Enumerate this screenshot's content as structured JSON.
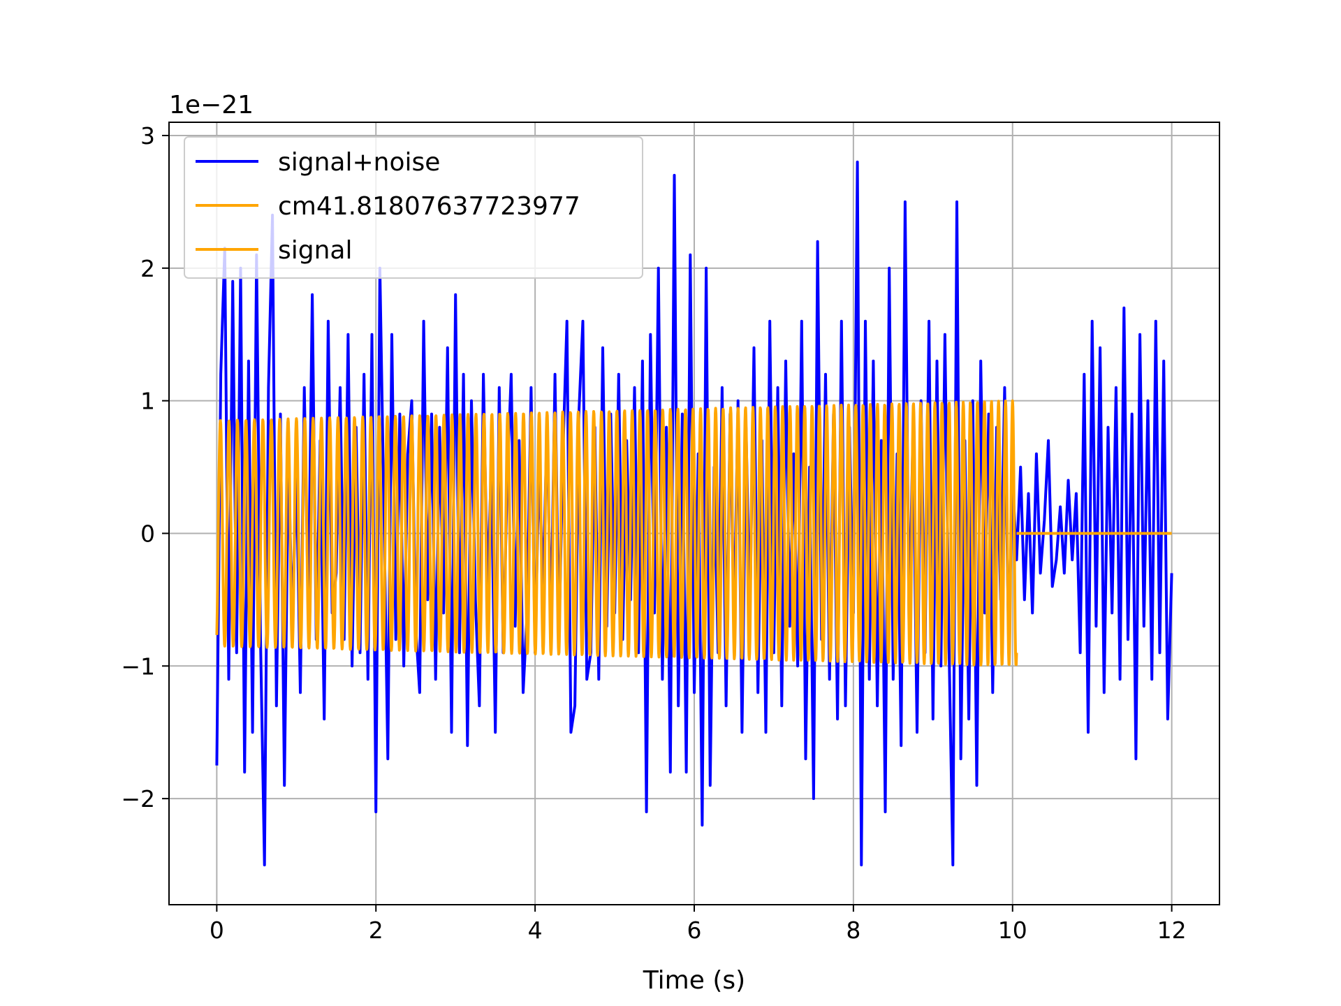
{
  "chart_data": {
    "type": "line",
    "title": "",
    "xlabel": "Time (s)",
    "ylabel": "",
    "y_offset_text": "1e−21",
    "xlim": [
      -0.6,
      12.6
    ],
    "ylim": [
      -2.8,
      3.1
    ],
    "xticks": [
      0,
      2,
      4,
      6,
      8,
      10,
      12
    ],
    "xtick_labels": [
      "0",
      "2",
      "4",
      "6",
      "8",
      "10",
      "12"
    ],
    "yticks": [
      -2,
      -1,
      0,
      1,
      2,
      3
    ],
    "ytick_labels": [
      "−2",
      "−1",
      "0",
      "1",
      "2",
      "3"
    ],
    "grid": true,
    "legend_position": "top-left",
    "series": [
      {
        "name": "signal+noise",
        "color": "#0000ff",
        "description_range": {
          "t_start": 0,
          "t_end": 12
        },
        "x": [
          0.0,
          0.05,
          0.1,
          0.15,
          0.2,
          0.25,
          0.3,
          0.35,
          0.4,
          0.45,
          0.5,
          0.55,
          0.6,
          0.65,
          0.7,
          0.75,
          0.8,
          0.85,
          0.9,
          0.95,
          1.0,
          1.05,
          1.1,
          1.15,
          1.2,
          1.25,
          1.3,
          1.35,
          1.4,
          1.45,
          1.5,
          1.55,
          1.6,
          1.65,
          1.7,
          1.75,
          1.8,
          1.85,
          1.9,
          1.95,
          2.0,
          2.05,
          2.1,
          2.15,
          2.2,
          2.25,
          2.3,
          2.35,
          2.4,
          2.45,
          2.5,
          2.55,
          2.6,
          2.65,
          2.7,
          2.75,
          2.8,
          2.85,
          2.9,
          2.95,
          3.0,
          3.05,
          3.1,
          3.15,
          3.2,
          3.25,
          3.3,
          3.35,
          3.4,
          3.45,
          3.5,
          3.55,
          3.6,
          3.65,
          3.7,
          3.75,
          3.8,
          3.85,
          3.9,
          3.95,
          4.0,
          4.05,
          4.1,
          4.15,
          4.2,
          4.25,
          4.3,
          4.35,
          4.4,
          4.45,
          4.5,
          4.55,
          4.6,
          4.65,
          4.7,
          4.75,
          4.8,
          4.85,
          4.9,
          4.95,
          5.0,
          5.05,
          5.1,
          5.15,
          5.2,
          5.25,
          5.3,
          5.35,
          5.4,
          5.45,
          5.5,
          5.55,
          5.6,
          5.65,
          5.7,
          5.75,
          5.8,
          5.85,
          5.9,
          5.95,
          6.0,
          6.05,
          6.1,
          6.15,
          6.2,
          6.25,
          6.3,
          6.35,
          6.4,
          6.45,
          6.5,
          6.55,
          6.6,
          6.65,
          6.7,
          6.75,
          6.8,
          6.85,
          6.9,
          6.95,
          7.0,
          7.05,
          7.1,
          7.15,
          7.2,
          7.25,
          7.3,
          7.35,
          7.4,
          7.45,
          7.5,
          7.55,
          7.6,
          7.65,
          7.7,
          7.75,
          7.8,
          7.85,
          7.9,
          7.95,
          8.0,
          8.05,
          8.1,
          8.15,
          8.2,
          8.25,
          8.3,
          8.35,
          8.4,
          8.45,
          8.5,
          8.55,
          8.6,
          8.65,
          8.7,
          8.75,
          8.8,
          8.85,
          8.9,
          8.95,
          9.0,
          9.05,
          9.1,
          9.15,
          9.2,
          9.25,
          9.3,
          9.35,
          9.4,
          9.45,
          9.5,
          9.55,
          9.6,
          9.65,
          9.7,
          9.75,
          9.8,
          9.85,
          9.9,
          9.95,
          10.0,
          10.05,
          10.1,
          10.15,
          10.2,
          10.25,
          10.3,
          10.35,
          10.4,
          10.45,
          10.5,
          10.55,
          10.6,
          10.65,
          10.7,
          10.75,
          10.8,
          10.85,
          10.9,
          10.95,
          11.0,
          11.05,
          11.1,
          11.15,
          11.2,
          11.25,
          11.3,
          11.35,
          11.4,
          11.45,
          11.5,
          11.55,
          11.6,
          11.65,
          11.7,
          11.75,
          11.8,
          11.85,
          11.9,
          11.95,
          12.0
        ],
        "values": [
          -1.75,
          1.2,
          2.15,
          -1.1,
          1.9,
          -0.9,
          2.0,
          -1.8,
          1.3,
          -1.5,
          2.1,
          -0.8,
          -2.5,
          1.1,
          2.4,
          -1.3,
          0.9,
          -1.9,
          0.6,
          -0.7,
          0.5,
          -1.2,
          1.1,
          -0.6,
          1.8,
          -0.8,
          0.7,
          -1.4,
          1.6,
          -0.6,
          -0.3,
          1.1,
          -0.8,
          1.5,
          -1.0,
          0.8,
          -0.9,
          1.2,
          -1.1,
          1.5,
          -2.1,
          2.0,
          0.2,
          -1.7,
          1.5,
          -0.8,
          0.9,
          -1.0,
          0.6,
          1.0,
          -0.7,
          -1.2,
          1.6,
          -0.5,
          0.9,
          -1.1,
          0.8,
          -0.6,
          1.4,
          -1.5,
          1.8,
          -0.9,
          1.2,
          -1.6,
          1.0,
          -0.5,
          -1.3,
          1.2,
          -0.4,
          0.5,
          -1.5,
          1.1,
          -0.9,
          0.4,
          1.2,
          -0.7,
          0.7,
          -1.2,
          -0.6,
          1.1,
          -0.9,
          0.5,
          -0.4,
          0.8,
          -0.7,
          1.2,
          -0.8,
          0.6,
          1.6,
          -1.5,
          -1.3,
          0.9,
          1.6,
          -1.1,
          -0.9,
          0.8,
          -1.1,
          1.4,
          -0.7,
          0.9,
          -0.6,
          1.2,
          -0.8,
          0.7,
          -0.5,
          1.1,
          -0.9,
          1.3,
          -2.1,
          1.5,
          -0.6,
          2.0,
          -1.1,
          0.8,
          -1.8,
          2.7,
          -1.3,
          0.9,
          -1.8,
          2.1,
          -1.2,
          0.6,
          -2.2,
          2.0,
          -1.9,
          0.5,
          -0.9,
          1.1,
          -1.3,
          0.9,
          -0.7,
          1.0,
          -1.5,
          0.8,
          -0.6,
          1.4,
          -1.2,
          0.7,
          -1.5,
          1.6,
          -0.9,
          1.1,
          -1.3,
          1.3,
          -0.7,
          0.6,
          -1.0,
          1.6,
          -1.7,
          0.5,
          -2.0,
          2.2,
          -0.8,
          1.2,
          -1.1,
          0.9,
          -1.4,
          1.6,
          -1.3,
          0.8,
          -0.6,
          2.8,
          -2.5,
          1.6,
          -1.1,
          1.3,
          -1.3,
          0.7,
          -2.1,
          2.0,
          -1.1,
          0.6,
          -1.6,
          2.5,
          -0.7,
          0.8,
          -1.5,
          1.0,
          -0.9,
          1.6,
          -1.4,
          1.3,
          -1.0,
          1.5,
          -0.8,
          -2.5,
          2.5,
          -1.7,
          0.7,
          -1.4,
          1.0,
          -1.9,
          1.3,
          -0.6,
          0.9,
          -1.2,
          0.8,
          -0.5,
          1.1,
          -0.8,
          0.4,
          -0.2,
          0.5,
          -0.5,
          0.3,
          -0.6,
          0.6,
          -0.3,
          0.1,
          0.7,
          -0.4,
          -0.2,
          0.2,
          -0.3,
          0.4,
          -0.2,
          0.3,
          -0.9,
          1.2,
          -1.5,
          1.6,
          -0.7,
          1.4,
          -1.2,
          0.8,
          -0.6,
          1.1,
          -1.1,
          1.7,
          -0.8,
          0.9,
          -1.7,
          1.5,
          -0.7,
          1.0,
          -1.1,
          1.6,
          -0.9,
          1.3,
          -1.4,
          -0.3
        ]
      },
      {
        "name": "cm41.81807637723977",
        "color": "#ffa500",
        "t_end": 10.05,
        "amplitude_start": 0.85,
        "amplitude_end": 1.0,
        "cycles": 104
      },
      {
        "name": "signal",
        "color": "#ffa500",
        "t_start": 10.05,
        "t_end": 12.0,
        "value": 0
      }
    ]
  }
}
